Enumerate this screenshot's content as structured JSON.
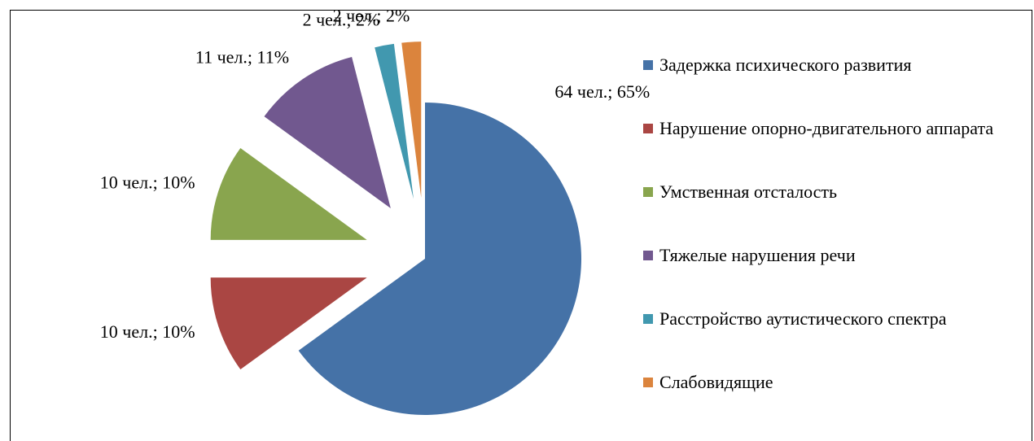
{
  "chart_data": {
    "type": "pie",
    "categories": [
      "Задержка психического  развития",
      "Нарушение опорно-двигательного аппарата",
      "Умственная отсталость",
      "Тяжелые нарушения речи",
      "Расстройство аутистического спектра",
      "Слабовидящие"
    ],
    "values": [
      65,
      10,
      10,
      11,
      2,
      2
    ],
    "value_labels": [
      "64 чел.; 65%",
      "10 чел.; 10%",
      "10 чел.; 10%",
      "11 чел.; 11%",
      "2 чел.; 2%",
      "2 чел.; 2%"
    ],
    "colors": [
      "#4572a7",
      "#aa4643",
      "#89a54e",
      "#71588f",
      "#4198af",
      "#db843d"
    ],
    "legend": "right"
  }
}
